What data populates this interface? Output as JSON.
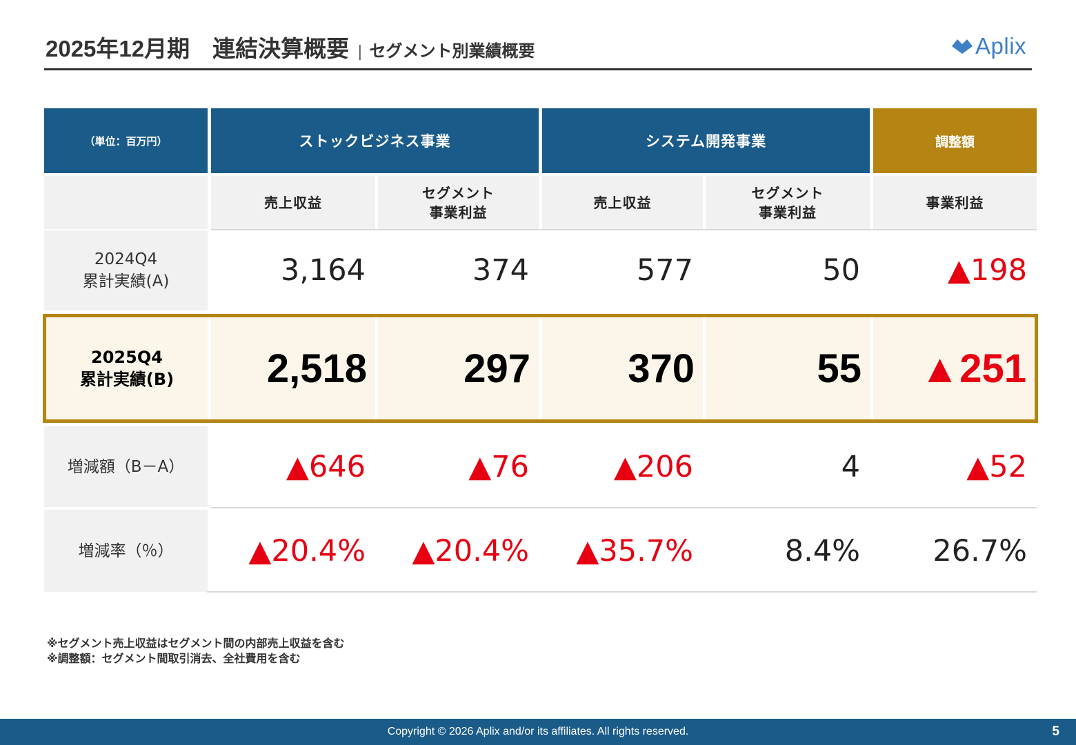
{
  "header": {
    "title": "2025年12月期　連結決算概要",
    "separator": "|",
    "subtitle": "セグメント別業績概要"
  },
  "logo": {
    "text": "Aplix",
    "mark_icon": "aplix-diamond-icon",
    "color": "#3f7fc8"
  },
  "table": {
    "unit_label": "（単位：百万円）",
    "groups": [
      "ストックビジネス事業",
      "システム開発事業",
      "調整額"
    ],
    "columns": [
      "売上収益",
      "セグメント\n事業利益",
      "売上収益",
      "セグメント\n事業利益",
      "事業利益"
    ],
    "rows": [
      {
        "label": "2024Q4\n累計実績(A)",
        "values": [
          "3,164",
          "374",
          "577",
          "50",
          "▲198"
        ]
      },
      {
        "label": "2025Q4\n累計実績(B)",
        "values": [
          "2,518",
          "297",
          "370",
          "55",
          "▲251"
        ]
      },
      {
        "label": "増減額（B－A）",
        "values": [
          "▲646",
          "▲76",
          "▲206",
          "4",
          "▲52"
        ]
      },
      {
        "label": "増減率（％）",
        "values": [
          "▲20.4%",
          "▲20.4%",
          "▲35.7%",
          "8.4%",
          "26.7%"
        ]
      }
    ]
  },
  "notes": [
    "※セグメント売上収益はセグメント間の内部売上収益を含む",
    "※調整額：セグメント間取引消去、全社費用を含む"
  ],
  "footer": {
    "copyright": "Copyright © 2026  Aplix and/or its affiliates. All rights reserved.",
    "page_number": "5"
  },
  "colors": {
    "header_blue": "#1b5b8a",
    "accent_gold": "#b58413",
    "negative_red": "#e60012",
    "highlight_bg": "#fbf6e9"
  }
}
